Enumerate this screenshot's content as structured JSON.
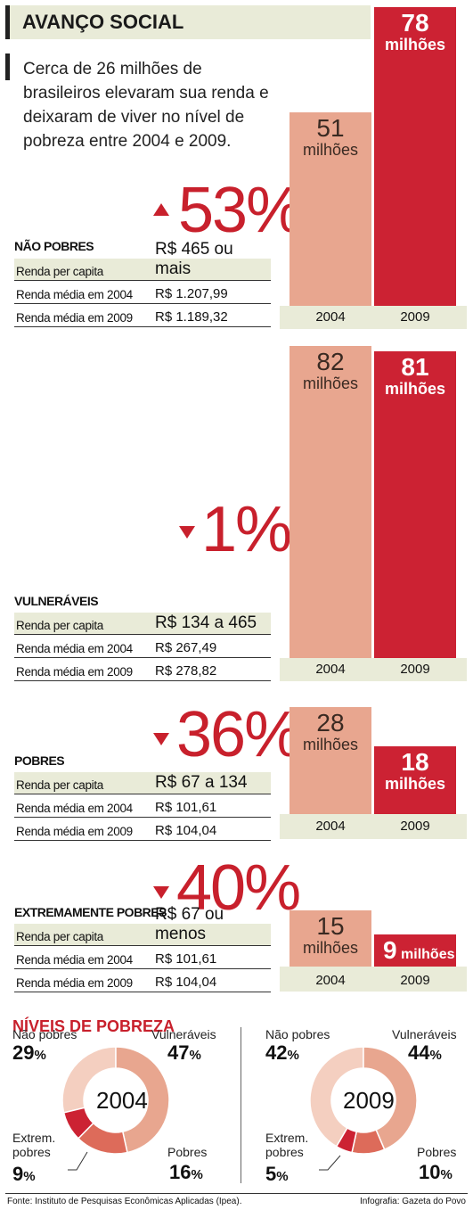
{
  "header": {
    "title": "AVANÇO SOCIAL",
    "intro": "Cerca de 26 milhões de brasileiros elevaram sua renda e deixaram de viver no nível de pobreza entre 2004 e 2009."
  },
  "labels": {
    "renda_per_capita": "Renda per capita",
    "renda_2004": "Renda média em 2004",
    "renda_2009": "Renda média em 2009",
    "year_2004": "2004",
    "year_2009": "2009",
    "milhoes": "milhões"
  },
  "groups": [
    {
      "title": "NÃO POBRES",
      "change": "53%",
      "direction": "up",
      "per_capita": "R$ 465 ou mais",
      "renda_2004": "R$ 1.207,99",
      "renda_2009": "R$ 1.189,32",
      "pop_2004": "51",
      "pop_2009": "78"
    },
    {
      "title": "VULNERÁVEIS",
      "change": "1%",
      "direction": "down",
      "per_capita": "R$ 134 a 465",
      "renda_2004": "R$ 267,49",
      "renda_2009": "R$ 278,82",
      "pop_2004": "82",
      "pop_2009": "81"
    },
    {
      "title": "POBRES",
      "change": "36%",
      "direction": "down",
      "per_capita": "R$ 67 a 134",
      "renda_2004": "R$ 101,61",
      "renda_2009": "R$ 104,04",
      "pop_2004": "28",
      "pop_2009": "18"
    },
    {
      "title": "EXTREMAMENTE POBRES",
      "change": "40%",
      "direction": "down",
      "per_capita": "R$ 67 ou menos",
      "renda_2004": "R$ 101,61",
      "renda_2009": "R$ 104,04",
      "pop_2004": "15",
      "pop_2009": "9"
    }
  ],
  "chart_data": [
    {
      "type": "bar",
      "categories": [
        "2004",
        "2009"
      ],
      "values": [
        51,
        78
      ],
      "title": "NÃO POBRES",
      "ylabel": "milhões"
    },
    {
      "type": "bar",
      "categories": [
        "2004",
        "2009"
      ],
      "values": [
        82,
        81
      ],
      "title": "VULNERÁVEIS",
      "ylabel": "milhões"
    },
    {
      "type": "bar",
      "categories": [
        "2004",
        "2009"
      ],
      "values": [
        28,
        18
      ],
      "title": "POBRES",
      "ylabel": "milhões"
    },
    {
      "type": "bar",
      "categories": [
        "2004",
        "2009"
      ],
      "values": [
        15,
        9
      ],
      "title": "EXTREMAMENTE POBRES",
      "ylabel": "milhões"
    },
    {
      "type": "pie",
      "title": "2004",
      "categories": [
        "Não pobres",
        "Vulneráveis",
        "Pobres",
        "Extrem. pobres"
      ],
      "values": [
        29,
        47,
        16,
        9
      ]
    },
    {
      "type": "pie",
      "title": "2009",
      "categories": [
        "Não pobres",
        "Vulneráveis",
        "Pobres",
        "Extrem. pobres"
      ],
      "values": [
        42,
        44,
        10,
        5
      ]
    }
  ],
  "poverty": {
    "title": "NÍVEIS DE POBREZA",
    "label_nao_pobres": "Não pobres",
    "label_vulneraveis": "Vulneráveis",
    "label_pobres": "Pobres",
    "label_extrem_1": "Extrem.",
    "label_extrem_2": "pobres",
    "y2004": {
      "year": "2004",
      "nao_pobres": "29",
      "vulneraveis": "47",
      "pobres": "16",
      "extrem": "9"
    },
    "y2009": {
      "year": "2009",
      "nao_pobres": "42",
      "vulneraveis": "44",
      "pobres": "10",
      "extrem": "5"
    },
    "pct_sign": "%"
  },
  "colors": {
    "nao_pobres": "#f4cfc0",
    "vulneraveis": "#e8a68f",
    "pobres": "#dd6b5a",
    "extrem": "#cc2233",
    "accent": "#c8202c"
  },
  "footer": {
    "source": "Fonte: Instituto de Pesquisas Econômicas Aplicadas (Ipea).",
    "credit": "Infografia: Gazeta do Povo"
  }
}
